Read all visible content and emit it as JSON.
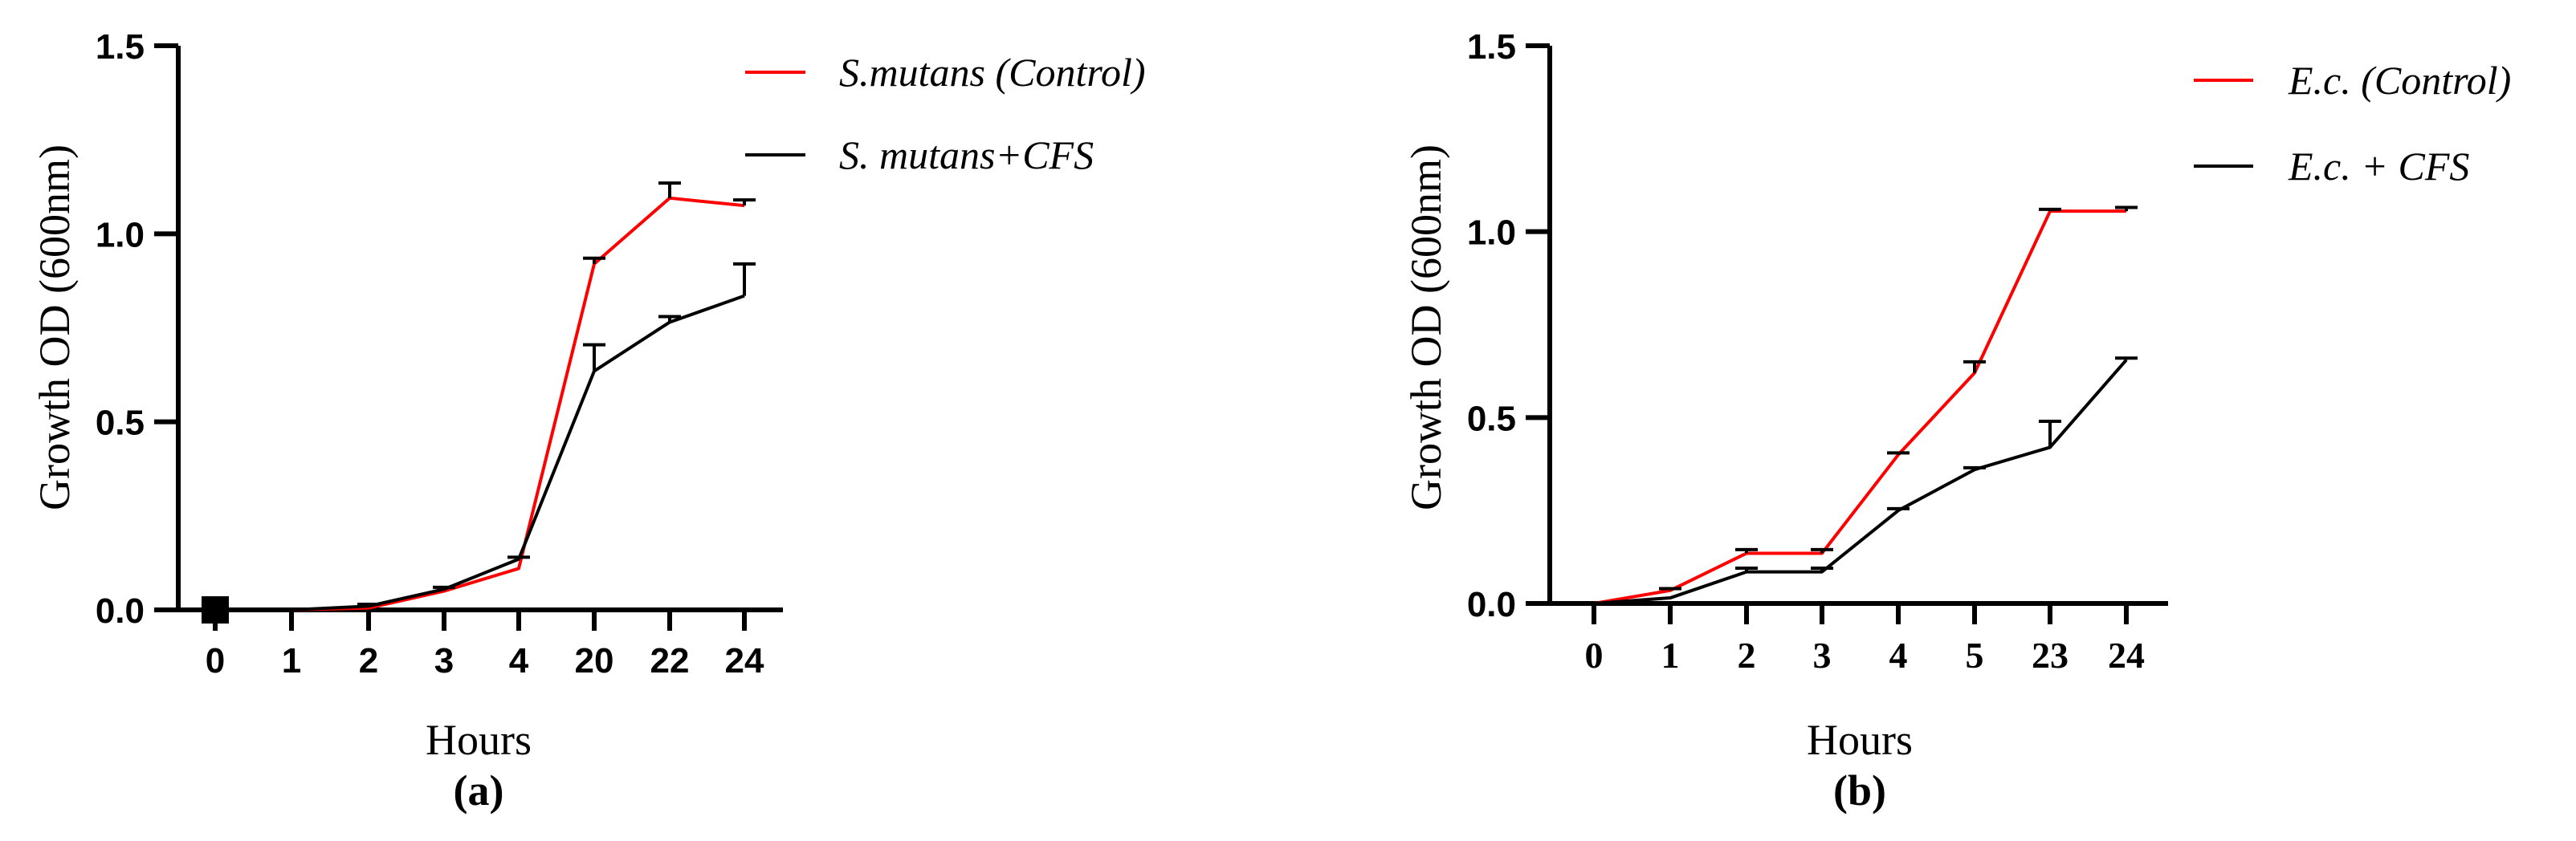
{
  "chart_data": [
    {
      "type": "line",
      "panel_label": "(a)",
      "xlabel": "Hours",
      "ylabel": "Growth OD (600nm)",
      "categories": [
        "0",
        "1",
        "2",
        "3",
        "4",
        "20",
        "22",
        "24"
      ],
      "yticks": [
        "0.0",
        "0.5",
        "1.0",
        "1.5"
      ],
      "ylim": [
        0,
        1.5
      ],
      "legend_position": "top-right",
      "series": [
        {
          "name": "S.mutans (Control)",
          "color": "#ff0000",
          "values": [
            0.0,
            0.0,
            0.005,
            0.05,
            0.11,
            0.92,
            1.095,
            1.075
          ],
          "error": [
            0.01,
            0.0,
            0.0,
            0.0,
            0.0,
            0.015,
            0.04,
            0.015
          ]
        },
        {
          "name": "S. mutans+CFS",
          "color": "#000000",
          "values": [
            0.0,
            0.0,
            0.01,
            0.055,
            0.135,
            0.635,
            0.765,
            0.835
          ],
          "error": [
            0.01,
            0.0,
            0.005,
            0.005,
            0.005,
            0.07,
            0.015,
            0.085
          ]
        }
      ]
    },
    {
      "type": "line",
      "panel_label": "(b)",
      "xlabel": "Hours",
      "ylabel": "Growth OD (600nm)",
      "categories": [
        "0",
        "1",
        "2",
        "3",
        "4",
        "5",
        "23",
        "24"
      ],
      "yticks": [
        "0.0",
        "0.5",
        "1.0",
        "1.5"
      ],
      "ylim": [
        0,
        1.5
      ],
      "legend_position": "top-right",
      "series": [
        {
          "name": "E.c. (Control)",
          "color": "#ff0000",
          "values": [
            0.0,
            0.035,
            0.135,
            0.135,
            0.4,
            0.62,
            1.055,
            1.055
          ],
          "error": [
            0.0,
            0.005,
            0.01,
            0.01,
            0.005,
            0.03,
            0.005,
            0.01
          ]
        },
        {
          "name": "E.c. + CFS",
          "color": "#000000",
          "values": [
            0.0,
            0.015,
            0.085,
            0.085,
            0.25,
            0.36,
            0.42,
            0.655
          ],
          "error": [
            0.0,
            0.0,
            0.01,
            0.01,
            0.005,
            0.005,
            0.07,
            0.005
          ]
        }
      ]
    }
  ]
}
